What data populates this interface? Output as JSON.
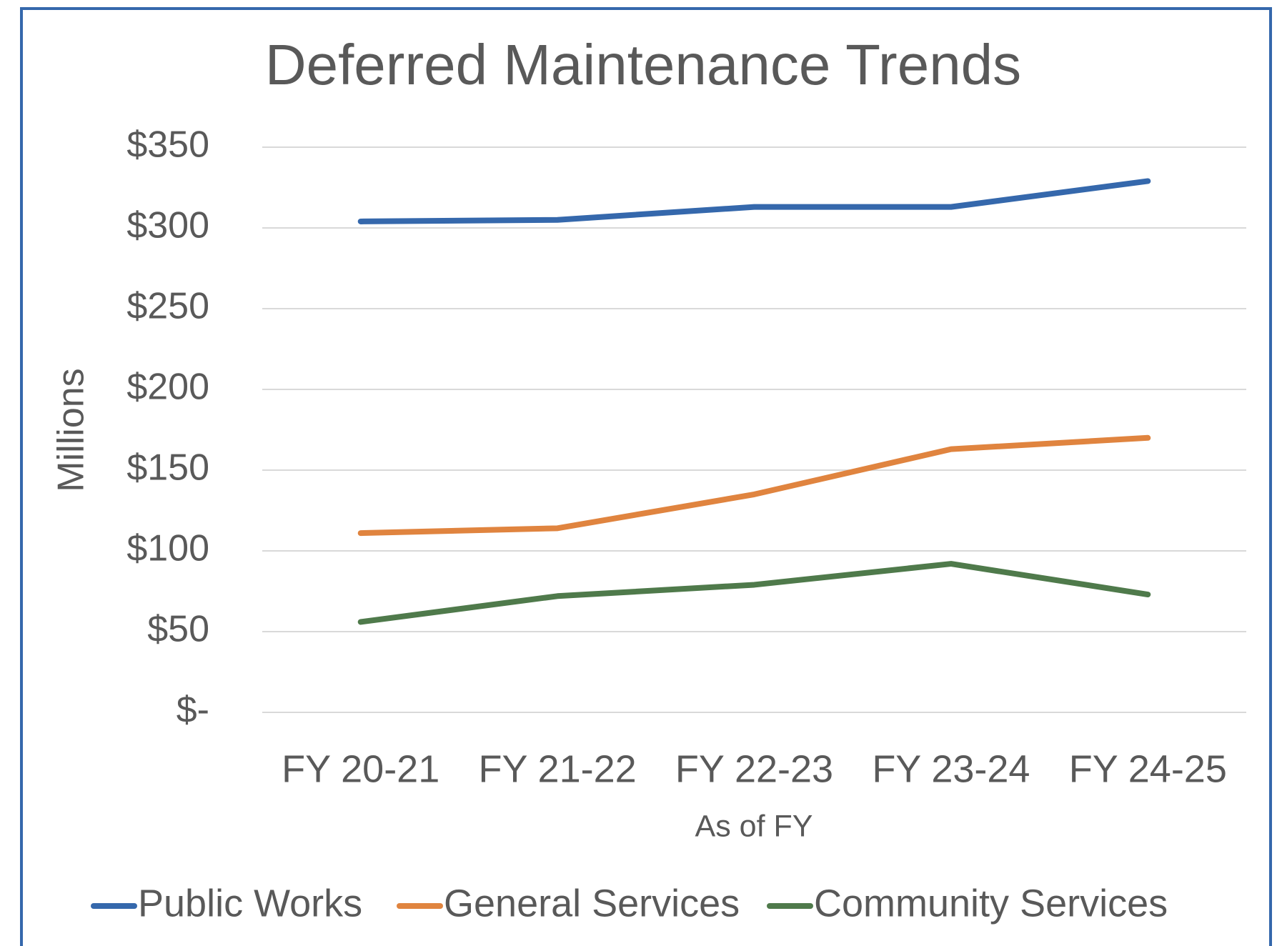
{
  "chart_data": {
    "type": "line",
    "title": "Deferred Maintenance Trends",
    "x_label": "As of FY",
    "y_label": "Millions",
    "categories": [
      "FY 20-21",
      "FY 21-22",
      "FY 22-23",
      "FY 23-24",
      "FY 24-25"
    ],
    "series": [
      {
        "name": "Public Works",
        "color": "#3568ac",
        "values": [
          304,
          305,
          313,
          313,
          329
        ]
      },
      {
        "name": "General Services",
        "color": "#e0843f",
        "values": [
          111,
          114,
          135,
          163,
          170
        ]
      },
      {
        "name": "Community Services",
        "color": "#4f7a4b",
        "values": [
          56,
          72,
          79,
          92,
          73
        ]
      }
    ],
    "ylim": [
      0,
      350
    ],
    "yticks": [
      {
        "value": 0,
        "label": "$-"
      },
      {
        "value": 50,
        "label": "$50"
      },
      {
        "value": 100,
        "label": "$100"
      },
      {
        "value": 150,
        "label": "$150"
      },
      {
        "value": 200,
        "label": "$200"
      },
      {
        "value": 250,
        "label": "$250"
      },
      {
        "value": 300,
        "label": "$300"
      },
      {
        "value": 350,
        "label": "$350"
      }
    ],
    "grid": true,
    "legend": "bottom"
  }
}
